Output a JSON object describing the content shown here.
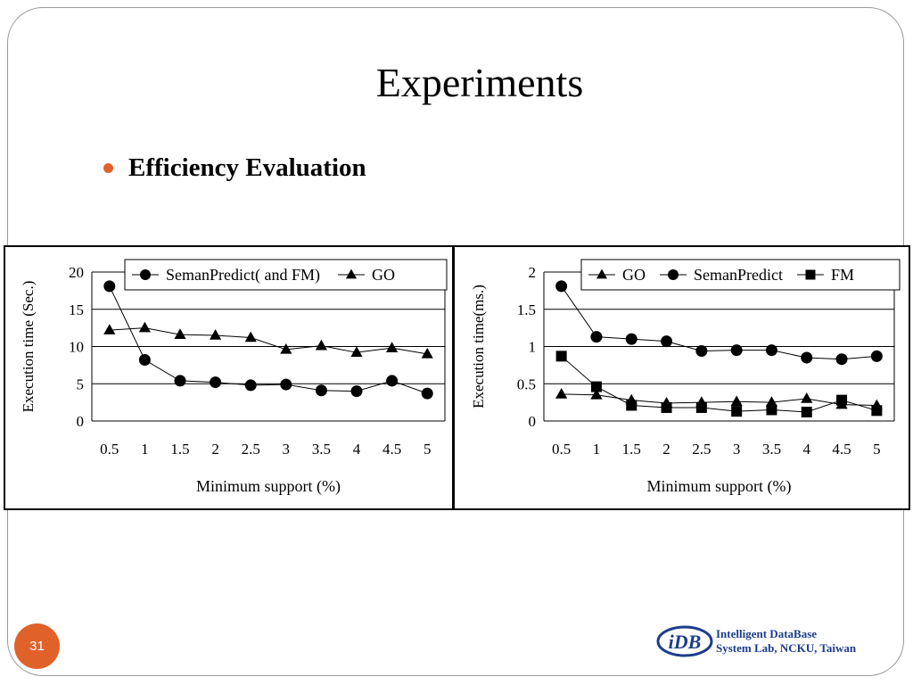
{
  "slide": {
    "title": "Experiments",
    "bullet": "Efficiency Evaluation",
    "page_number": "31",
    "logo": {
      "mark_text": "iDB",
      "line1": "Intelligent DataBase",
      "line2": "System Lab, NCKU, Taiwan"
    }
  },
  "colors": {
    "bullet": "#e0622a",
    "logo": "#1c3c8c"
  },
  "chart_data": [
    {
      "type": "line",
      "title": "",
      "xlabel": "Minimum support (%)",
      "ylabel": "Execution time (Sec.)",
      "x": [
        0.5,
        1,
        1.5,
        2,
        2.5,
        3,
        3.5,
        4,
        4.5,
        5
      ],
      "xticks": [
        "0.5",
        "1",
        "1.5",
        "2",
        "2.5",
        "3",
        "3.5",
        "4",
        "4.5",
        "5"
      ],
      "ylim": [
        0,
        20
      ],
      "yticks": [
        "0",
        "5",
        "10",
        "15",
        "20"
      ],
      "grid": "horizontal",
      "legend_position": "top",
      "series": [
        {
          "name": "SemanPredict( and FM)",
          "marker": "circle",
          "values": [
            18.1,
            8.2,
            5.4,
            5.2,
            4.8,
            4.9,
            4.1,
            4.0,
            5.4,
            3.7
          ]
        },
        {
          "name": "GO",
          "marker": "triangle",
          "values": [
            12.2,
            12.5,
            11.6,
            11.5,
            11.2,
            9.6,
            10.1,
            9.2,
            9.8,
            9.0
          ]
        }
      ]
    },
    {
      "type": "line",
      "title": "",
      "xlabel": "Minimum support (%)",
      "ylabel": "Execution time(ms.)",
      "x": [
        0.5,
        1,
        1.5,
        2,
        2.5,
        3,
        3.5,
        4,
        4.5,
        5
      ],
      "xticks": [
        "0.5",
        "1",
        "1.5",
        "2",
        "2.5",
        "3",
        "3.5",
        "4",
        "4.5",
        "5"
      ],
      "ylim": [
        0,
        2
      ],
      "yticks": [
        "0",
        "0.5",
        "1",
        "1.5",
        "2"
      ],
      "grid": "horizontal",
      "legend_position": "top",
      "series": [
        {
          "name": "GO",
          "marker": "triangle",
          "values": [
            0.36,
            0.35,
            0.28,
            0.24,
            0.25,
            0.26,
            0.25,
            0.3,
            0.22,
            0.21
          ]
        },
        {
          "name": "SemanPredict",
          "marker": "circle",
          "values": [
            1.81,
            1.13,
            1.1,
            1.07,
            0.94,
            0.95,
            0.95,
            0.85,
            0.83,
            0.87
          ]
        },
        {
          "name": "FM",
          "marker": "square",
          "values": [
            0.87,
            0.46,
            0.21,
            0.18,
            0.18,
            0.13,
            0.15,
            0.12,
            0.28,
            0.14
          ]
        }
      ]
    }
  ]
}
